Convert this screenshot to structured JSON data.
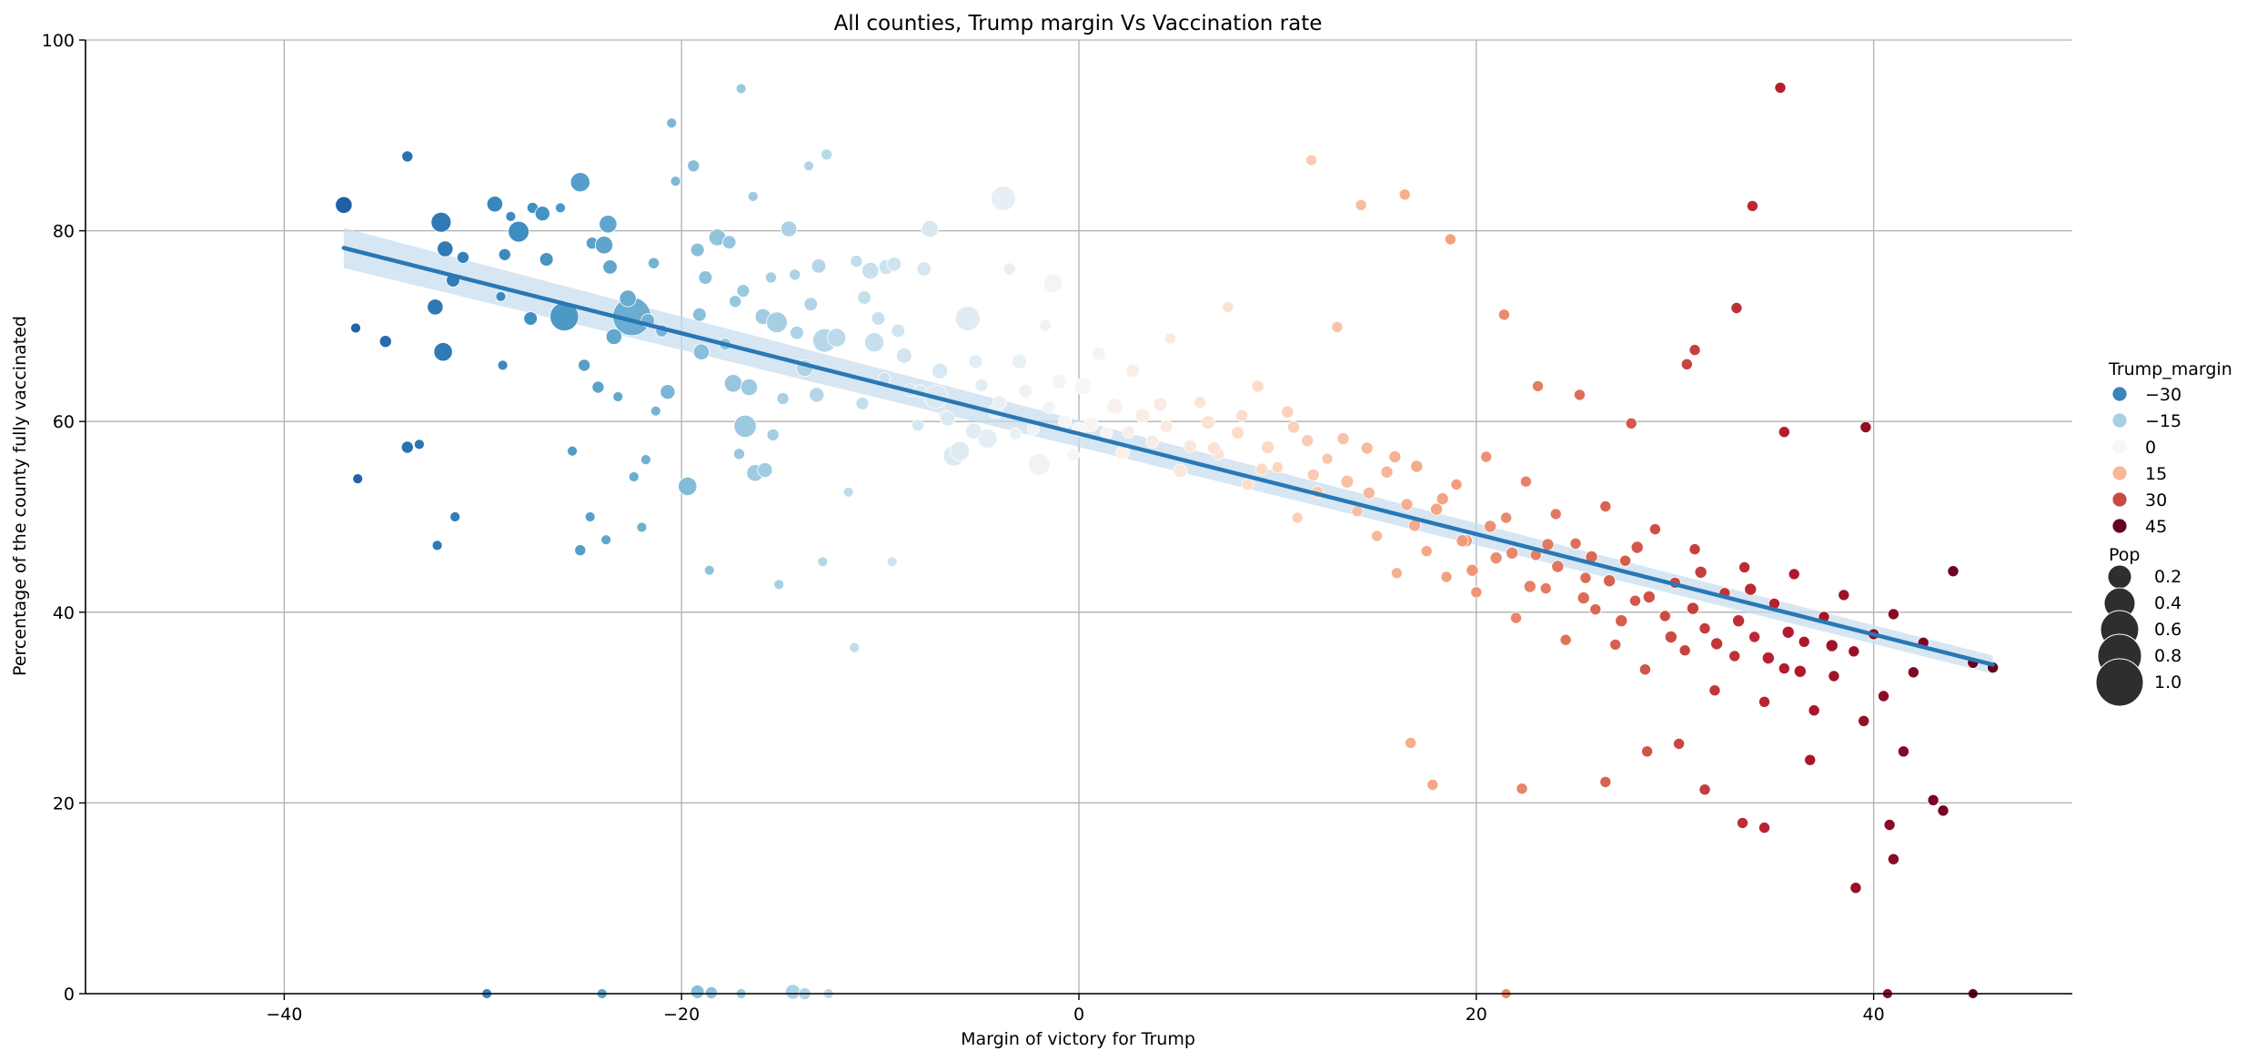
{
  "chart_data": {
    "type": "scatter",
    "title": "All counties, Trump margin Vs Vaccination rate",
    "xlabel": "Margin of victory for Trump",
    "ylabel": "Percentage of the county fully vaccinated",
    "xlim": [
      -50,
      50
    ],
    "ylim": [
      0,
      100
    ],
    "xticks": [
      -40,
      -20,
      0,
      20,
      40
    ],
    "yticks": [
      0,
      20,
      40,
      60,
      80,
      100
    ],
    "xtick_labels": [
      "−40",
      "−20",
      "0",
      "20",
      "40"
    ],
    "ytick_labels": [
      "0",
      "20",
      "40",
      "60",
      "80",
      "100"
    ],
    "grid": true,
    "colormap": "RdBu_r",
    "hue_range": [
      -45,
      45
    ],
    "regression": {
      "x_start": -37,
      "y_start": 78.2,
      "x_end": 46,
      "y_end": 34.5,
      "line_color": "#2878b5",
      "band_color": "#c6dcee"
    },
    "legend": {
      "placement": "right",
      "hue_title": "Trump_margin",
      "hue_entries": [
        {
          "label": "−30",
          "value": -30
        },
        {
          "label": "−15",
          "value": -15
        },
        {
          "label": "0",
          "value": 0
        },
        {
          "label": "15",
          "value": 15
        },
        {
          "label": "30",
          "value": 30
        },
        {
          "label": "45",
          "value": 45
        }
      ],
      "size_title": "Pop",
      "size_entries": [
        {
          "label": "0.2",
          "value": 0.2
        },
        {
          "label": "0.4",
          "value": 0.4
        },
        {
          "label": "0.6",
          "value": 0.6
        },
        {
          "label": "0.8",
          "value": 0.8
        },
        {
          "label": "1.0",
          "value": 1.0
        }
      ]
    },
    "points": [
      [
        -37.0,
        82.7,
        0.12
      ],
      [
        -33.8,
        87.8,
        0.03
      ],
      [
        -36.4,
        69.8,
        0.02
      ],
      [
        -34.9,
        68.4,
        0.04
      ],
      [
        -33.8,
        57.3,
        0.04
      ],
      [
        -33.2,
        57.6,
        0.02
      ],
      [
        -36.3,
        54.0,
        0.02
      ],
      [
        -32.3,
        47.0,
        0.02
      ],
      [
        -32.1,
        80.9,
        0.2
      ],
      [
        -31.9,
        78.1,
        0.1
      ],
      [
        -31.5,
        74.8,
        0.06
      ],
      [
        -31.0,
        77.2,
        0.04
      ],
      [
        -32.4,
        72.0,
        0.1
      ],
      [
        -32.0,
        67.3,
        0.16
      ],
      [
        -31.4,
        50.0,
        0.02
      ],
      [
        -29.4,
        82.8,
        0.1
      ],
      [
        -28.9,
        77.5,
        0.04
      ],
      [
        -29.1,
        73.1,
        0.02
      ],
      [
        -29.0,
        65.9,
        0.02
      ],
      [
        -28.6,
        81.5,
        0.02
      ],
      [
        -28.2,
        79.9,
        0.22
      ],
      [
        -27.5,
        82.4,
        0.03
      ],
      [
        -27.0,
        81.8,
        0.08
      ],
      [
        -26.8,
        77.0,
        0.06
      ],
      [
        -27.6,
        70.8,
        0.06
      ],
      [
        -25.9,
        71.0,
        0.5
      ],
      [
        -26.1,
        82.4,
        0.02
      ],
      [
        -25.1,
        85.1,
        0.18
      ],
      [
        -24.5,
        78.7,
        0.04
      ],
      [
        -23.7,
        80.7,
        0.14
      ],
      [
        -23.9,
        78.5,
        0.14
      ],
      [
        -23.6,
        76.2,
        0.07
      ],
      [
        -22.5,
        71.0,
        1.0
      ],
      [
        -22.7,
        72.9,
        0.12
      ],
      [
        -23.4,
        68.9,
        0.1
      ],
      [
        -24.9,
        65.9,
        0.04
      ],
      [
        -24.2,
        63.6,
        0.04
      ],
      [
        -25.5,
        56.9,
        0.02
      ],
      [
        -25.1,
        46.5,
        0.03
      ],
      [
        -24.6,
        50.0,
        0.02
      ],
      [
        -23.8,
        47.6,
        0.02
      ],
      [
        -23.2,
        62.6,
        0.02
      ],
      [
        -21.4,
        76.6,
        0.03
      ],
      [
        -21.7,
        70.6,
        0.06
      ],
      [
        -21.0,
        69.5,
        0.04
      ],
      [
        -20.7,
        63.1,
        0.08
      ],
      [
        -21.3,
        61.1,
        0.02
      ],
      [
        -21.8,
        56.0,
        0.02
      ],
      [
        -22.4,
        54.2,
        0.02
      ],
      [
        -22.0,
        48.9,
        0.02
      ],
      [
        -20.3,
        85.2,
        0.02
      ],
      [
        -20.5,
        91.3,
        0.02
      ],
      [
        -19.4,
        86.8,
        0.04
      ],
      [
        -19.2,
        78.0,
        0.06
      ],
      [
        -18.8,
        75.1,
        0.06
      ],
      [
        -19.1,
        71.2,
        0.06
      ],
      [
        -19.0,
        67.3,
        0.1
      ],
      [
        -19.7,
        53.2,
        0.16
      ],
      [
        -18.6,
        44.4,
        0.02
      ],
      [
        -18.2,
        79.3,
        0.12
      ],
      [
        -17.6,
        78.8,
        0.06
      ],
      [
        -17.3,
        72.6,
        0.04
      ],
      [
        -16.9,
        73.7,
        0.05
      ],
      [
        -17.8,
        68.1,
        0.04
      ],
      [
        -17.4,
        64.0,
        0.14
      ],
      [
        -16.6,
        63.6,
        0.12
      ],
      [
        -16.8,
        59.5,
        0.26
      ],
      [
        -17.1,
        56.6,
        0.03
      ],
      [
        -16.3,
        54.6,
        0.12
      ],
      [
        -15.8,
        54.9,
        0.08
      ],
      [
        -17.0,
        94.9,
        0.02
      ],
      [
        -16.4,
        83.6,
        0.02
      ],
      [
        -15.9,
        71.0,
        0.1
      ],
      [
        -15.5,
        75.1,
        0.03
      ],
      [
        -15.2,
        70.4,
        0.22
      ],
      [
        -14.6,
        80.2,
        0.1
      ],
      [
        -14.3,
        75.4,
        0.03
      ],
      [
        -14.9,
        62.4,
        0.04
      ],
      [
        -15.4,
        58.6,
        0.04
      ],
      [
        -15.1,
        42.9,
        0.02
      ],
      [
        -14.2,
        69.3,
        0.06
      ],
      [
        -13.8,
        65.6,
        0.12
      ],
      [
        -13.5,
        72.3,
        0.06
      ],
      [
        -13.1,
        76.3,
        0.07
      ],
      [
        -13.6,
        86.8,
        0.02
      ],
      [
        -12.7,
        88.0,
        0.03
      ],
      [
        -13.2,
        62.8,
        0.08
      ],
      [
        -12.8,
        68.5,
        0.3
      ],
      [
        -12.2,
        68.8,
        0.16
      ],
      [
        -12.9,
        45.3,
        0.02
      ],
      [
        -11.6,
        52.6,
        0.02
      ],
      [
        -11.3,
        36.3,
        0.02
      ],
      [
        -11.2,
        76.8,
        0.04
      ],
      [
        -10.8,
        73.0,
        0.06
      ],
      [
        -10.5,
        75.8,
        0.12
      ],
      [
        -10.1,
        70.8,
        0.06
      ],
      [
        -10.3,
        68.3,
        0.18
      ],
      [
        -9.7,
        76.2,
        0.08
      ],
      [
        -9.3,
        76.5,
        0.07
      ],
      [
        -9.8,
        64.5,
        0.04
      ],
      [
        -10.9,
        61.9,
        0.05
      ],
      [
        -9.1,
        69.5,
        0.06
      ],
      [
        -8.8,
        66.9,
        0.09
      ],
      [
        -8.5,
        63.3,
        0.05
      ],
      [
        -8.1,
        59.6,
        0.04
      ],
      [
        -9.4,
        45.3,
        0.02
      ],
      [
        -7.8,
        76.0,
        0.07
      ],
      [
        -7.5,
        80.2,
        0.12
      ],
      [
        -7.2,
        62.6,
        0.3
      ],
      [
        -7.0,
        65.3,
        0.1
      ],
      [
        -6.7,
        60.5,
        0.06
      ],
      [
        -6.3,
        56.4,
        0.22
      ],
      [
        -6.0,
        56.9,
        0.18
      ],
      [
        -5.6,
        70.8,
        0.34
      ],
      [
        -5.2,
        66.3,
        0.06
      ],
      [
        -4.9,
        63.8,
        0.05
      ],
      [
        -4.6,
        58.2,
        0.18
      ],
      [
        -4.2,
        61.1,
        0.07
      ],
      [
        -3.8,
        83.4,
        0.34
      ],
      [
        -3.5,
        76.0,
        0.04
      ],
      [
        -3.0,
        66.3,
        0.08
      ],
      [
        -2.7,
        63.2,
        0.06
      ],
      [
        -2.3,
        59.2,
        0.04
      ],
      [
        -2.0,
        55.5,
        0.24
      ],
      [
        -1.7,
        70.1,
        0.04
      ],
      [
        -1.3,
        74.5,
        0.16
      ],
      [
        -1.0,
        64.2,
        0.08
      ],
      [
        -0.7,
        60.0,
        0.06
      ],
      [
        -0.3,
        56.5,
        0.05
      ],
      [
        0.2,
        63.7,
        0.12
      ],
      [
        0.6,
        59.7,
        0.08
      ],
      [
        1.0,
        67.1,
        0.06
      ],
      [
        1.4,
        58.8,
        0.04
      ],
      [
        1.8,
        61.6,
        0.1
      ],
      [
        2.2,
        56.7,
        0.06
      ],
      [
        2.7,
        65.3,
        0.06
      ],
      [
        3.2,
        60.6,
        0.08
      ],
      [
        3.7,
        57.9,
        0.05
      ],
      [
        4.1,
        61.8,
        0.06
      ],
      [
        4.6,
        68.7,
        0.03
      ],
      [
        5.1,
        54.8,
        0.06
      ],
      [
        5.6,
        57.4,
        0.05
      ],
      [
        6.1,
        62.0,
        0.04
      ],
      [
        6.5,
        59.9,
        0.06
      ],
      [
        7.0,
        56.6,
        0.04
      ],
      [
        7.5,
        72.0,
        0.03
      ],
      [
        8.0,
        58.8,
        0.05
      ],
      [
        8.5,
        53.4,
        0.04
      ],
      [
        9.0,
        63.7,
        0.04
      ],
      [
        9.5,
        57.3,
        0.05
      ],
      [
        10.0,
        55.2,
        0.03
      ],
      [
        10.5,
        61.0,
        0.04
      ],
      [
        11.0,
        49.9,
        0.03
      ],
      [
        11.5,
        58.0,
        0.04
      ],
      [
        12.0,
        52.6,
        0.04
      ],
      [
        12.5,
        56.1,
        0.03
      ],
      [
        13.0,
        69.9,
        0.03
      ],
      [
        13.5,
        53.7,
        0.05
      ],
      [
        14.0,
        50.6,
        0.03
      ],
      [
        14.5,
        57.2,
        0.04
      ],
      [
        15.0,
        48.0,
        0.03
      ],
      [
        15.5,
        54.7,
        0.04
      ],
      [
        16.0,
        44.1,
        0.03
      ],
      [
        16.5,
        51.3,
        0.04
      ],
      [
        17.0,
        55.3,
        0.04
      ],
      [
        17.5,
        46.4,
        0.03
      ],
      [
        18.0,
        50.8,
        0.04
      ],
      [
        18.5,
        43.7,
        0.03
      ],
      [
        19.0,
        53.4,
        0.03
      ],
      [
        19.5,
        47.5,
        0.04
      ],
      [
        20.0,
        42.1,
        0.03
      ],
      [
        20.5,
        56.3,
        0.03
      ],
      [
        21.0,
        45.7,
        0.04
      ],
      [
        21.5,
        49.9,
        0.03
      ],
      [
        22.0,
        39.4,
        0.03
      ],
      [
        22.5,
        53.7,
        0.03
      ],
      [
        23.0,
        46.0,
        0.03
      ],
      [
        23.5,
        42.5,
        0.03
      ],
      [
        24.0,
        50.3,
        0.03
      ],
      [
        24.5,
        37.1,
        0.03
      ],
      [
        25.0,
        47.2,
        0.03
      ],
      [
        25.5,
        43.6,
        0.03
      ],
      [
        26.0,
        40.3,
        0.03
      ],
      [
        26.5,
        51.1,
        0.03
      ],
      [
        27.0,
        36.6,
        0.03
      ],
      [
        27.5,
        45.4,
        0.03
      ],
      [
        28.0,
        41.2,
        0.03
      ],
      [
        28.5,
        34.0,
        0.03
      ],
      [
        29.0,
        48.7,
        0.03
      ],
      [
        29.5,
        39.6,
        0.03
      ],
      [
        30.0,
        43.1,
        0.03
      ],
      [
        30.5,
        36.0,
        0.03
      ],
      [
        31.0,
        46.6,
        0.03
      ],
      [
        31.5,
        38.3,
        0.03
      ],
      [
        32.0,
        31.8,
        0.03
      ],
      [
        32.5,
        42.0,
        0.03
      ],
      [
        33.0,
        35.4,
        0.03
      ],
      [
        33.5,
        44.7,
        0.03
      ],
      [
        34.0,
        37.4,
        0.03
      ],
      [
        34.5,
        30.6,
        0.03
      ],
      [
        35.0,
        40.9,
        0.03
      ],
      [
        35.5,
        34.1,
        0.03
      ],
      [
        36.0,
        44.0,
        0.03
      ],
      [
        36.5,
        36.9,
        0.03
      ],
      [
        37.0,
        29.7,
        0.03
      ],
      [
        37.5,
        39.5,
        0.03
      ],
      [
        38.0,
        33.3,
        0.03
      ],
      [
        38.5,
        41.8,
        0.03
      ],
      [
        39.0,
        35.9,
        0.03
      ],
      [
        39.5,
        28.6,
        0.03
      ],
      [
        40.0,
        37.7,
        0.03
      ],
      [
        40.5,
        31.2,
        0.03
      ],
      [
        41.0,
        39.8,
        0.03
      ],
      [
        41.5,
        25.4,
        0.03
      ],
      [
        42.0,
        33.7,
        0.03
      ],
      [
        42.5,
        36.8,
        0.03
      ],
      [
        43.0,
        20.3,
        0.03
      ],
      [
        43.5,
        19.2,
        0.03
      ],
      [
        44.0,
        44.3,
        0.03
      ],
      [
        45.0,
        34.7,
        0.03
      ],
      [
        46.0,
        34.2,
        0.03
      ],
      [
        35.3,
        95.0,
        0.03
      ],
      [
        33.9,
        82.6,
        0.03
      ],
      [
        33.1,
        71.9,
        0.03
      ],
      [
        31.0,
        67.5,
        0.03
      ],
      [
        30.6,
        66.0,
        0.03
      ],
      [
        35.5,
        58.9,
        0.03
      ],
      [
        39.6,
        59.4,
        0.03
      ],
      [
        27.8,
        59.8,
        0.03
      ],
      [
        25.2,
        62.8,
        0.03
      ],
      [
        23.1,
        63.7,
        0.03
      ],
      [
        21.4,
        71.2,
        0.03
      ],
      [
        18.7,
        79.1,
        0.03
      ],
      [
        16.4,
        83.8,
        0.03
      ],
      [
        14.2,
        82.7,
        0.03
      ],
      [
        11.7,
        87.4,
        0.03
      ],
      [
        39.1,
        11.1,
        0.03
      ],
      [
        40.8,
        17.7,
        0.03
      ],
      [
        41.0,
        14.1,
        0.03
      ],
      [
        34.5,
        17.4,
        0.03
      ],
      [
        33.4,
        17.9,
        0.03
      ],
      [
        31.5,
        21.4,
        0.03
      ],
      [
        26.5,
        22.2,
        0.03
      ],
      [
        22.3,
        21.5,
        0.03
      ],
      [
        17.8,
        21.9,
        0.03
      ],
      [
        16.7,
        26.3,
        0.03
      ],
      [
        28.6,
        25.4,
        0.03
      ],
      [
        30.2,
        26.2,
        0.03
      ],
      [
        36.8,
        24.5,
        0.03
      ],
      [
        -5.3,
        59.0,
        0.1
      ],
      [
        -6.6,
        60.3,
        0.08
      ],
      [
        -8.0,
        63.2,
        0.05
      ],
      [
        -4.0,
        62.0,
        0.06
      ],
      [
        -3.2,
        58.7,
        0.04
      ],
      [
        -1.5,
        61.5,
        0.05
      ],
      [
        0.0,
        59.2,
        0.07
      ],
      [
        2.5,
        58.9,
        0.05
      ],
      [
        4.4,
        59.5,
        0.05
      ],
      [
        6.8,
        57.2,
        0.05
      ],
      [
        9.2,
        55.0,
        0.04
      ],
      [
        11.8,
        54.4,
        0.04
      ],
      [
        14.6,
        52.5,
        0.04
      ],
      [
        16.9,
        49.1,
        0.04
      ],
      [
        19.3,
        47.5,
        0.04
      ],
      [
        21.8,
        46.2,
        0.04
      ],
      [
        24.1,
        44.8,
        0.04
      ],
      [
        26.7,
        43.3,
        0.04
      ],
      [
        28.7,
        41.6,
        0.04
      ],
      [
        30.9,
        40.4,
        0.04
      ],
      [
        33.2,
        39.1,
        0.04
      ],
      [
        35.7,
        37.9,
        0.04
      ],
      [
        37.9,
        36.5,
        0.04
      ],
      [
        18.3,
        51.9,
        0.04
      ],
      [
        20.7,
        49.0,
        0.04
      ],
      [
        23.6,
        47.1,
        0.04
      ],
      [
        25.8,
        45.8,
        0.04
      ],
      [
        27.3,
        39.1,
        0.04
      ],
      [
        29.8,
        37.4,
        0.04
      ],
      [
        32.1,
        36.7,
        0.04
      ],
      [
        34.7,
        35.2,
        0.04
      ],
      [
        36.3,
        33.8,
        0.04
      ],
      [
        15.9,
        56.3,
        0.04
      ],
      [
        13.3,
        58.2,
        0.04
      ],
      [
        10.8,
        59.4,
        0.04
      ],
      [
        8.2,
        60.6,
        0.04
      ],
      [
        19.8,
        44.4,
        0.04
      ],
      [
        22.7,
        42.7,
        0.04
      ],
      [
        25.4,
        41.5,
        0.04
      ],
      [
        28.1,
        46.8,
        0.04
      ],
      [
        31.3,
        44.2,
        0.04
      ],
      [
        33.8,
        42.4,
        0.04
      ],
      [
        -29.8,
        0.0,
        0.02
      ],
      [
        -24.0,
        0.0,
        0.02
      ],
      [
        -19.2,
        0.2,
        0.06
      ],
      [
        -18.5,
        0.1,
        0.04
      ],
      [
        -17.0,
        0.0,
        0.02
      ],
      [
        -14.4,
        0.2,
        0.08
      ],
      [
        -13.8,
        0.0,
        0.04
      ],
      [
        -12.6,
        0.0,
        0.02
      ],
      [
        21.5,
        0.0,
        0.02
      ],
      [
        40.7,
        0.0,
        0.02
      ],
      [
        45.0,
        0.0,
        0.02
      ]
    ]
  }
}
